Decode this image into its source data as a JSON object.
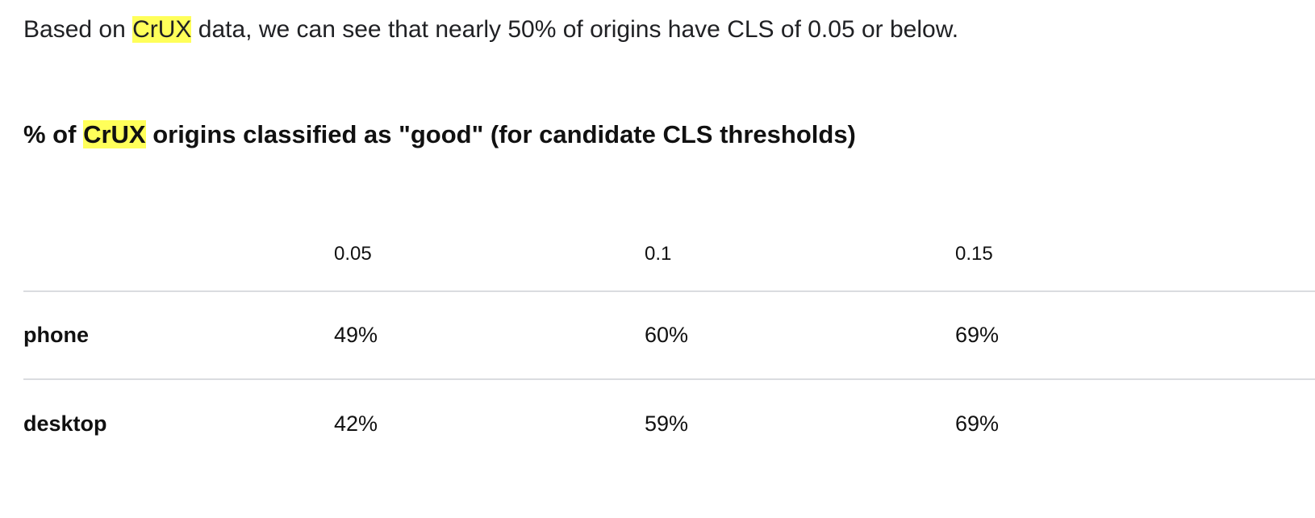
{
  "paragraph": {
    "before": "Based on ",
    "highlight": "CrUX",
    "after": " data, we can see that nearly 50% of origins have CLS of 0.05 or below."
  },
  "table_title": {
    "before": "% of ",
    "highlight": "CrUX",
    "after": " origins classified as \"good\" (for candidate CLS thresholds)"
  },
  "table": {
    "header": [
      "0.05",
      "0.1",
      "0.15"
    ],
    "rows": [
      [
        "phone",
        "49%",
        "60%",
        "69%"
      ],
      [
        "desktop",
        "42%",
        "59%",
        "69%"
      ]
    ]
  }
}
